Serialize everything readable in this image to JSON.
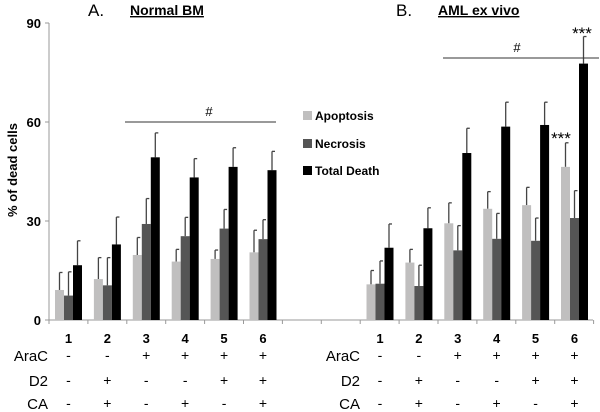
{
  "chart_data": [
    {
      "type": "bar",
      "panel_label": "A.",
      "title": "Normal BM",
      "ylabel": "% of dead cells",
      "ylim": [
        0,
        90
      ],
      "yticks": [
        "0",
        "30",
        "60",
        "90"
      ],
      "categories": [
        "1",
        "2",
        "3",
        "4",
        "5",
        "6"
      ],
      "series": [
        {
          "name": "Apoptosis",
          "color": "#c0bfbf",
          "values": [
            9.1,
            12.4,
            19.7,
            17.7,
            18.5,
            20.5
          ],
          "error_upper": [
            14.4,
            18.9,
            25.0,
            21.4,
            21.2,
            27.2
          ]
        },
        {
          "name": "Necrosis",
          "color": "#555555",
          "values": [
            7.4,
            10.5,
            29.1,
            25.4,
            27.7,
            24.5
          ],
          "error_upper": [
            14.6,
            18.9,
            36.8,
            31.1,
            33.5,
            30.4
          ]
        },
        {
          "name": "Total Death",
          "color": "#000000",
          "values": [
            16.6,
            22.9,
            49.3,
            43.2,
            46.4,
            45.4
          ],
          "error_upper": [
            24.0,
            31.2,
            56.7,
            48.9,
            52.2,
            51.1
          ]
        }
      ],
      "annotations": [
        {
          "text": "#",
          "groups": [
            "3",
            "6"
          ],
          "level": 60
        }
      ]
    },
    {
      "type": "bar",
      "panel_label": "B.",
      "title": "AML ex vivo",
      "ylim": [
        0,
        90
      ],
      "categories": [
        "1",
        "2",
        "3",
        "4",
        "5",
        "6"
      ],
      "series": [
        {
          "name": "Apoptosis",
          "color": "#c0bfbf",
          "values": [
            10.8,
            17.4,
            29.3,
            33.7,
            34.8,
            46.4
          ],
          "error_upper": [
            15.0,
            21.4,
            35.5,
            38.9,
            40.2,
            53.7
          ]
        },
        {
          "name": "Necrosis",
          "color": "#555555",
          "values": [
            11.0,
            10.3,
            21.1,
            24.6,
            24.0,
            30.9
          ],
          "error_upper": [
            17.9,
            16.6,
            28.6,
            32.3,
            30.9,
            39.2
          ]
        },
        {
          "name": "Total Death",
          "color": "#000000",
          "values": [
            21.9,
            27.8,
            50.6,
            58.6,
            59.1,
            77.7
          ],
          "error_upper": [
            29.1,
            34.0,
            58.1,
            66.0,
            66.0,
            85.9
          ]
        }
      ],
      "annotations": [
        {
          "text": "#",
          "groups": [
            "3",
            "6"
          ],
          "level": 82
        },
        {
          "text": "***",
          "group": "6",
          "series": "Total Death"
        },
        {
          "text": "***",
          "group": "6",
          "series": "Apoptosis"
        }
      ]
    }
  ],
  "legend": [
    "Apoptosis",
    "Necrosis",
    "Total Death"
  ],
  "conditions": {
    "rows": [
      {
        "label": "AraC",
        "values": [
          "-",
          "-",
          "+",
          "+",
          "+",
          "+"
        ]
      },
      {
        "label": "D2",
        "values": [
          "-",
          "+",
          "-",
          "-",
          "+",
          "+"
        ]
      },
      {
        "label": "CA",
        "values": [
          "-",
          "+",
          "-",
          "+",
          "-",
          "+"
        ]
      }
    ]
  }
}
